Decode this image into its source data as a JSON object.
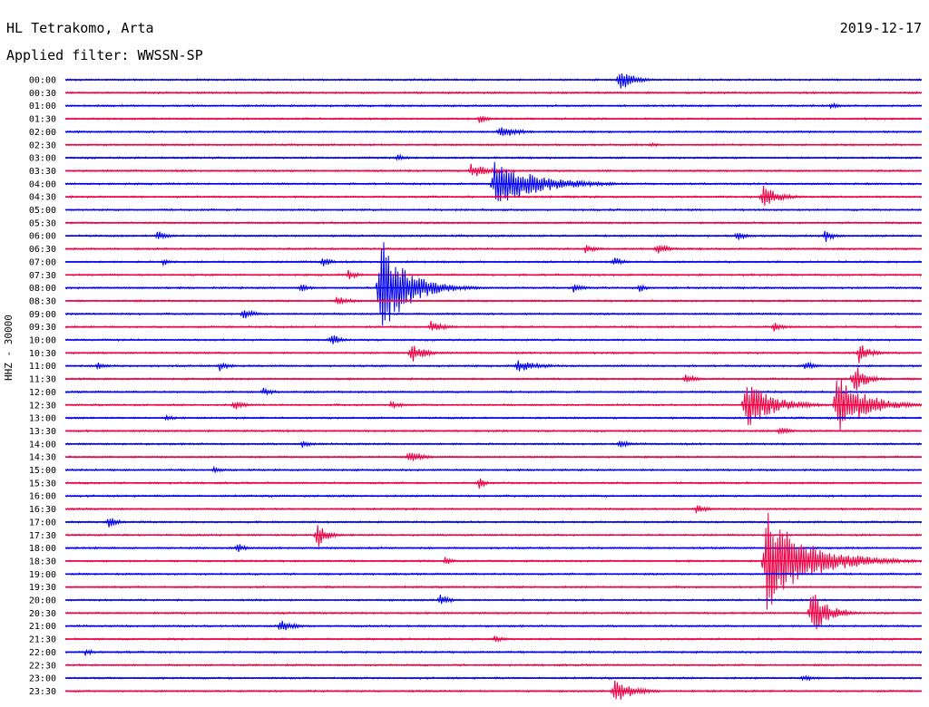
{
  "header": {
    "station": "HL Tetrakomo, Arta",
    "date": "2019-12-17",
    "filter_label": "Applied filter: WWSSN-SP",
    "side_label": "HHZ - 30000"
  },
  "colors": {
    "even_trace": "#0000ee",
    "odd_trace": "#ee0044",
    "background": "#ffffff"
  },
  "chart_data": {
    "type": "line",
    "subtype": "helicorder",
    "grid": false,
    "row_labels": [
      "00:00",
      "00:30",
      "01:00",
      "01:30",
      "02:00",
      "02:30",
      "03:00",
      "03:30",
      "04:00",
      "04:30",
      "05:00",
      "05:30",
      "06:00",
      "06:30",
      "07:00",
      "07:30",
      "08:00",
      "08:30",
      "09:00",
      "09:30",
      "10:00",
      "10:30",
      "11:00",
      "11:30",
      "12:00",
      "12:30",
      "13:00",
      "13:30",
      "14:00",
      "14:30",
      "15:00",
      "15:30",
      "16:00",
      "16:30",
      "17:00",
      "17:30",
      "18:00",
      "18:30",
      "19:00",
      "19:30",
      "20:00",
      "20:30",
      "21:00",
      "21:30",
      "22:00",
      "22:30",
      "23:00",
      "23:30"
    ],
    "x_unit": "minutes within row",
    "x_range": [
      0,
      30
    ],
    "events": [
      {
        "row": 0,
        "minute": 19.4,
        "amplitude": 14,
        "duration": 1.2
      },
      {
        "row": 2,
        "minute": 26.8,
        "amplitude": 4,
        "duration": 1.0
      },
      {
        "row": 3,
        "minute": 14.5,
        "amplitude": 5,
        "duration": 1.0
      },
      {
        "row": 4,
        "minute": 15.2,
        "amplitude": 9,
        "duration": 1.5
      },
      {
        "row": 5,
        "minute": 20.5,
        "amplitude": 3,
        "duration": 0.8
      },
      {
        "row": 6,
        "minute": 11.6,
        "amplitude": 4,
        "duration": 1.0
      },
      {
        "row": 7,
        "minute": 14.2,
        "amplitude": 8,
        "duration": 2.0
      },
      {
        "row": 8,
        "minute": 15.0,
        "amplitude": 28,
        "duration": 4.0
      },
      {
        "row": 9,
        "minute": 24.4,
        "amplitude": 14,
        "duration": 1.5
      },
      {
        "row": 12,
        "minute": 3.2,
        "amplitude": 8,
        "duration": 0.8
      },
      {
        "row": 12,
        "minute": 23.5,
        "amplitude": 6,
        "duration": 0.8
      },
      {
        "row": 12,
        "minute": 26.6,
        "amplitude": 8,
        "duration": 0.8
      },
      {
        "row": 13,
        "minute": 18.2,
        "amplitude": 5,
        "duration": 1.0
      },
      {
        "row": 13,
        "minute": 20.7,
        "amplitude": 8,
        "duration": 1.0
      },
      {
        "row": 14,
        "minute": 3.4,
        "amplitude": 5,
        "duration": 0.8
      },
      {
        "row": 14,
        "minute": 9.0,
        "amplitude": 6,
        "duration": 0.8
      },
      {
        "row": 14,
        "minute": 19.2,
        "amplitude": 6,
        "duration": 0.8
      },
      {
        "row": 15,
        "minute": 9.9,
        "amplitude": 6,
        "duration": 0.8
      },
      {
        "row": 16,
        "minute": 11.0,
        "amplitude": 60,
        "duration": 2.5
      },
      {
        "row": 16,
        "minute": 8.2,
        "amplitude": 6,
        "duration": 0.8
      },
      {
        "row": 16,
        "minute": 17.8,
        "amplitude": 6,
        "duration": 0.8
      },
      {
        "row": 16,
        "minute": 20.1,
        "amplitude": 5,
        "duration": 0.8
      },
      {
        "row": 17,
        "minute": 9.5,
        "amplitude": 5,
        "duration": 1.5
      },
      {
        "row": 18,
        "minute": 6.2,
        "amplitude": 7,
        "duration": 1.0
      },
      {
        "row": 19,
        "minute": 12.8,
        "amplitude": 7,
        "duration": 1.2
      },
      {
        "row": 19,
        "minute": 24.8,
        "amplitude": 6,
        "duration": 0.8
      },
      {
        "row": 20,
        "minute": 9.3,
        "amplitude": 8,
        "duration": 0.8
      },
      {
        "row": 21,
        "minute": 12.1,
        "amplitude": 12,
        "duration": 1.2
      },
      {
        "row": 21,
        "minute": 27.8,
        "amplitude": 12,
        "duration": 1.0
      },
      {
        "row": 22,
        "minute": 1.1,
        "amplitude": 5,
        "duration": 0.8
      },
      {
        "row": 22,
        "minute": 5.4,
        "amplitude": 6,
        "duration": 0.8
      },
      {
        "row": 22,
        "minute": 15.8,
        "amplitude": 7,
        "duration": 2.2
      },
      {
        "row": 22,
        "minute": 25.9,
        "amplitude": 6,
        "duration": 0.8
      },
      {
        "row": 23,
        "minute": 21.7,
        "amplitude": 6,
        "duration": 1.0
      },
      {
        "row": 23,
        "minute": 27.6,
        "amplitude": 20,
        "duration": 1.0
      },
      {
        "row": 24,
        "minute": 6.9,
        "amplitude": 5,
        "duration": 1.0
      },
      {
        "row": 25,
        "minute": 5.9,
        "amplitude": 6,
        "duration": 1.0
      },
      {
        "row": 25,
        "minute": 11.4,
        "amplitude": 4,
        "duration": 1.5
      },
      {
        "row": 25,
        "minute": 23.8,
        "amplitude": 28,
        "duration": 2.5
      },
      {
        "row": 25,
        "minute": 27.0,
        "amplitude": 38,
        "duration": 2.5
      },
      {
        "row": 26,
        "minute": 3.5,
        "amplitude": 4,
        "duration": 0.8
      },
      {
        "row": 27,
        "minute": 25.0,
        "amplitude": 6,
        "duration": 0.8
      },
      {
        "row": 28,
        "minute": 8.3,
        "amplitude": 5,
        "duration": 0.8
      },
      {
        "row": 28,
        "minute": 19.4,
        "amplitude": 5,
        "duration": 1.0
      },
      {
        "row": 29,
        "minute": 12.0,
        "amplitude": 8,
        "duration": 1.2
      },
      {
        "row": 30,
        "minute": 5.2,
        "amplitude": 4,
        "duration": 0.8
      },
      {
        "row": 31,
        "minute": 14.5,
        "amplitude": 7,
        "duration": 0.5
      },
      {
        "row": 33,
        "minute": 22.1,
        "amplitude": 7,
        "duration": 0.8
      },
      {
        "row": 34,
        "minute": 1.5,
        "amplitude": 7,
        "duration": 0.8
      },
      {
        "row": 35,
        "minute": 8.8,
        "amplitude": 18,
        "duration": 0.8
      },
      {
        "row": 36,
        "minute": 6.0,
        "amplitude": 6,
        "duration": 0.8
      },
      {
        "row": 37,
        "minute": 24.5,
        "amplitude": 60,
        "duration": 4.0
      },
      {
        "row": 37,
        "minute": 13.3,
        "amplitude": 5,
        "duration": 0.8
      },
      {
        "row": 40,
        "minute": 13.1,
        "amplitude": 8,
        "duration": 0.8
      },
      {
        "row": 41,
        "minute": 26.1,
        "amplitude": 28,
        "duration": 1.5
      },
      {
        "row": 42,
        "minute": 7.5,
        "amplitude": 8,
        "duration": 1.2
      },
      {
        "row": 43,
        "minute": 15.0,
        "amplitude": 4,
        "duration": 1.0
      },
      {
        "row": 44,
        "minute": 0.7,
        "amplitude": 4,
        "duration": 0.8
      },
      {
        "row": 46,
        "minute": 25.8,
        "amplitude": 4,
        "duration": 1.2
      },
      {
        "row": 47,
        "minute": 19.2,
        "amplitude": 14,
        "duration": 1.8
      }
    ]
  }
}
